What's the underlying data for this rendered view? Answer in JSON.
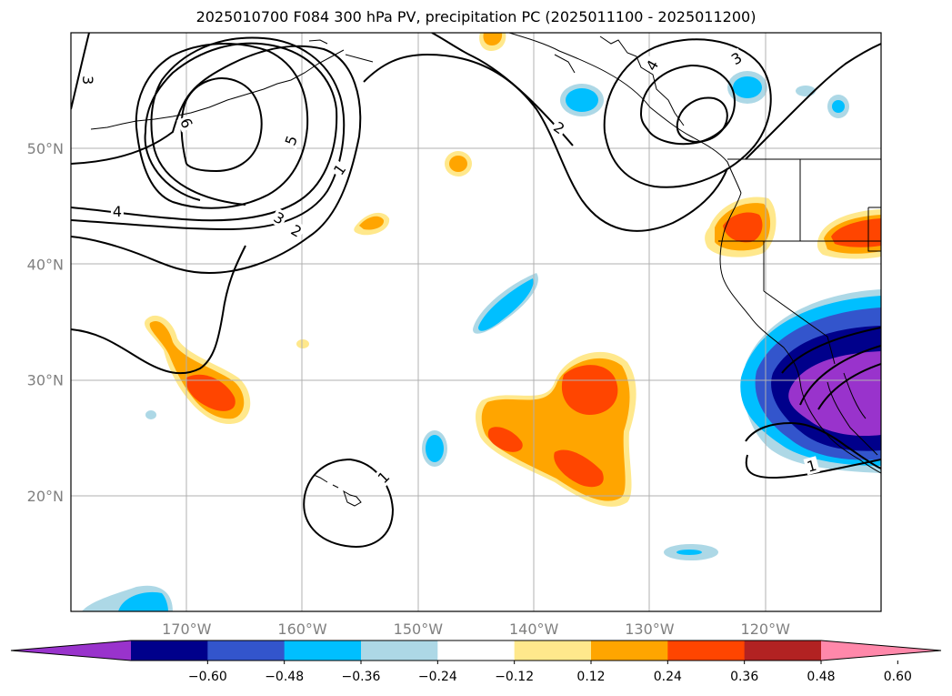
{
  "title": "2025010700 F084 300 hPa PV, precipitation PC (2025011100 - 2025011200)",
  "map": {
    "lon_range": [
      -180,
      -110
    ],
    "lat_range": [
      10,
      60
    ],
    "lat_ticks": [
      {
        "lat": 50,
        "label": "50°N"
      },
      {
        "lat": 40,
        "label": "40°N"
      },
      {
        "lat": 30,
        "label": "30°N"
      },
      {
        "lat": 20,
        "label": "20°N"
      }
    ],
    "lon_ticks": [
      {
        "lon": -170,
        "label": "170°W"
      },
      {
        "lon": -160,
        "label": "160°W"
      },
      {
        "lon": -150,
        "label": "150°W"
      },
      {
        "lon": -140,
        "label": "140°W"
      },
      {
        "lon": -130,
        "label": "130°W"
      },
      {
        "lon": -120,
        "label": "120°W"
      }
    ],
    "contour_labels": [
      {
        "text": "3",
        "lon": -178.5,
        "lat": 55.9,
        "rot": 90
      },
      {
        "text": "6",
        "lon": -170,
        "lat": 52.2,
        "rot": 65
      },
      {
        "text": "5",
        "lon": -161,
        "lat": 50.7,
        "rot": -70
      },
      {
        "text": "4",
        "lon": -176,
        "lat": 44.6,
        "rot": 0
      },
      {
        "text": "3",
        "lon": -162,
        "lat": 44.0,
        "rot": 30
      },
      {
        "text": "2",
        "lon": -160.5,
        "lat": 42.9,
        "rot": 30
      },
      {
        "text": "1",
        "lon": -156.8,
        "lat": 48.2,
        "rot": -55
      },
      {
        "text": "2",
        "lon": -137.8,
        "lat": 51.8,
        "rot": 35
      },
      {
        "text": "4",
        "lon": -129.8,
        "lat": 57.2,
        "rot": -60
      },
      {
        "text": "3",
        "lon": -122.5,
        "lat": 57.8,
        "rot": -30
      },
      {
        "text": "1",
        "lon": -153,
        "lat": 21.6,
        "rot": -45
      },
      {
        "text": "1",
        "lon": -116,
        "lat": 22.6,
        "rot": -15
      }
    ]
  },
  "colorbar": {
    "labels": [
      "−0.60",
      "−0.48",
      "−0.36",
      "−0.24",
      "−0.12",
      "0.12",
      "0.24",
      "0.36",
      "0.48",
      "0.60"
    ],
    "colors": [
      "#9933cc",
      "#00008b",
      "#3355cc",
      "#00bfff",
      "#add8e6",
      "#ffffff",
      "#ffe88c",
      "#ffa500",
      "#ff4500",
      "#b22222",
      "#ff88aa"
    ]
  },
  "field_colors": {
    "neg_1": "#add8e6",
    "neg_2": "#00bfff",
    "neg_3": "#3355cc",
    "neg_4": "#00008b",
    "neg_5": "#9933cc",
    "pos_1": "#ffe88c",
    "pos_2": "#ffa500",
    "pos_3": "#ff4500"
  }
}
